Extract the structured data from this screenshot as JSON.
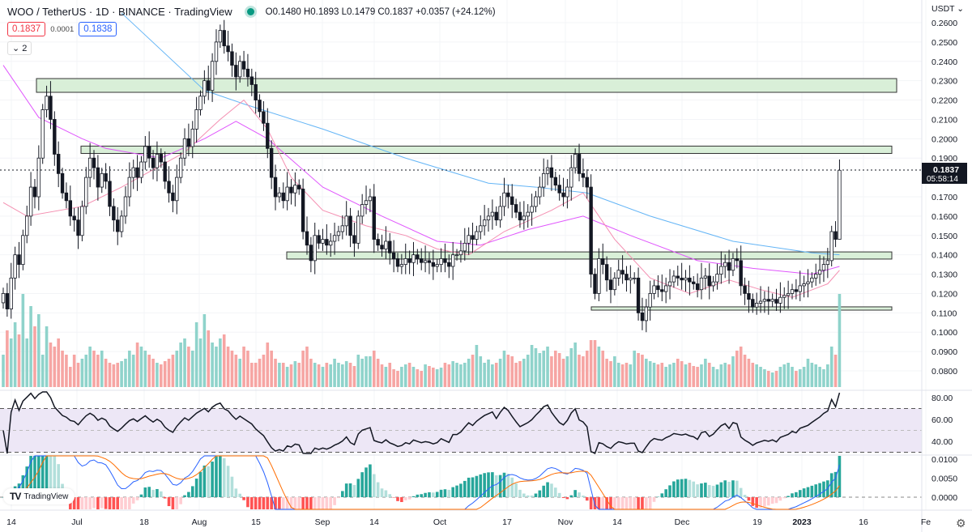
{
  "header": {
    "title": "WOO / TetherUS · 1D · BINANCE · TradingView",
    "ohlc": "O0.1480 H0.1893 L0.1479 C0.1837 +0.0357 (+24.12%)",
    "status_color": "#089981"
  },
  "trade": {
    "sell": "0.1837",
    "spread": "0.0001",
    "buy": "0.1838"
  },
  "collapse_label": "2",
  "currency_label": "USDT ⌄",
  "price_label": {
    "price": "0.1837",
    "countdown": "05:58:14"
  },
  "logo": "TradingView",
  "icons": {
    "settings": "gear-icon",
    "logo": "tradingview-logo-icon",
    "status": "market-open-dot-icon"
  },
  "colors": {
    "up_volume": "#8fd3cb",
    "down_volume": "#f6a5a3",
    "ma_long": "#64b5f6",
    "ma_mid": "#e056fd",
    "ma_short": "#f48fb1",
    "zone_fill": "#d9efd8",
    "rsi_band": "#ede7f6",
    "macd": "#2962ff",
    "signal": "#ff6d00"
  },
  "chart_data": [
    {
      "type": "candlestick",
      "price_axis": {
        "ticks": [
          "0.2600",
          "0.2500",
          "0.2400",
          "0.2300",
          "0.2200",
          "0.2100",
          "0.2000",
          "0.1900",
          "0.1700",
          "0.1600",
          "0.1500",
          "0.1400",
          "0.1300",
          "0.1200",
          "0.1100",
          "0.1000",
          "0.0900",
          "0.0800"
        ],
        "range": [
          0.075,
          0.262
        ]
      },
      "time_axis": {
        "ticks": [
          "14",
          "Jul",
          "18",
          "Aug",
          "15",
          "Sep",
          "14",
          "Oct",
          "17",
          "Nov",
          "14",
          "Dec",
          "19",
          "2023",
          "16",
          "Fe"
        ]
      },
      "closes": [
        0.12,
        0.112,
        0.128,
        0.14,
        0.135,
        0.15,
        0.16,
        0.175,
        0.17,
        0.19,
        0.215,
        0.222,
        0.21,
        0.192,
        0.182,
        0.172,
        0.168,
        0.16,
        0.158,
        0.15,
        0.165,
        0.18,
        0.19,
        0.185,
        0.175,
        0.182,
        0.178,
        0.165,
        0.158,
        0.152,
        0.16,
        0.17,
        0.18,
        0.185,
        0.18,
        0.188,
        0.196,
        0.19,
        0.185,
        0.192,
        0.188,
        0.178,
        0.172,
        0.168,
        0.18,
        0.19,
        0.2,
        0.196,
        0.205,
        0.215,
        0.222,
        0.23,
        0.225,
        0.24,
        0.25,
        0.256,
        0.248,
        0.245,
        0.238,
        0.232,
        0.24,
        0.236,
        0.232,
        0.228,
        0.22,
        0.214,
        0.208,
        0.195,
        0.18,
        0.17,
        0.172,
        0.168,
        0.175,
        0.172,
        0.176,
        0.174,
        0.152,
        0.145,
        0.137,
        0.15,
        0.146,
        0.148,
        0.145,
        0.147,
        0.15,
        0.152,
        0.155,
        0.16,
        0.15,
        0.146,
        0.16,
        0.166,
        0.168,
        0.17,
        0.148,
        0.145,
        0.143,
        0.147,
        0.141,
        0.138,
        0.134,
        0.135,
        0.138,
        0.136,
        0.14,
        0.138,
        0.136,
        0.137,
        0.136,
        0.134,
        0.135,
        0.138,
        0.136,
        0.134,
        0.14,
        0.14,
        0.142,
        0.146,
        0.15,
        0.148,
        0.152,
        0.155,
        0.158,
        0.16,
        0.162,
        0.158,
        0.165,
        0.172,
        0.17,
        0.166,
        0.162,
        0.158,
        0.16,
        0.162,
        0.165,
        0.17,
        0.175,
        0.182,
        0.185,
        0.18,
        0.176,
        0.172,
        0.17,
        0.175,
        0.185,
        0.192,
        0.182,
        0.18,
        0.175,
        0.13,
        0.12,
        0.138,
        0.135,
        0.127,
        0.122,
        0.128,
        0.132,
        0.13,
        0.127,
        0.128,
        0.128,
        0.11,
        0.106,
        0.113,
        0.12,
        0.124,
        0.122,
        0.121,
        0.124,
        0.126,
        0.129,
        0.128,
        0.127,
        0.128,
        0.126,
        0.125,
        0.122,
        0.128,
        0.129,
        0.124,
        0.126,
        0.13,
        0.134,
        0.136,
        0.132,
        0.138,
        0.137,
        0.124,
        0.12,
        0.117,
        0.113,
        0.115,
        0.116,
        0.117,
        0.116,
        0.117,
        0.115,
        0.118,
        0.119,
        0.12,
        0.122,
        0.121,
        0.124,
        0.125,
        0.126,
        0.128,
        0.13,
        0.132,
        0.135,
        0.137,
        0.152,
        0.148,
        0.1837
      ],
      "last_bar": {
        "open": 0.148,
        "high": 0.1893,
        "low": 0.1479,
        "close": 0.1837
      },
      "volumes": [
        40,
        70,
        60,
        80,
        65,
        115,
        60,
        100,
        75,
        90,
        40,
        75,
        55,
        50,
        60,
        45,
        40,
        25,
        40,
        30,
        35,
        40,
        50,
        45,
        40,
        45,
        35,
        30,
        28,
        30,
        32,
        35,
        45,
        40,
        55,
        50,
        45,
        40,
        35,
        30,
        28,
        32,
        35,
        40,
        45,
        55,
        60,
        50,
        45,
        80,
        60,
        90,
        70,
        55,
        50,
        60,
        65,
        50,
        45,
        40,
        35,
        50,
        45,
        30,
        30,
        35,
        40,
        55,
        45,
        35,
        30,
        30,
        25,
        28,
        32,
        30,
        45,
        50,
        35,
        30,
        28,
        25,
        30,
        28,
        35,
        30,
        28,
        32,
        30,
        26,
        40,
        35,
        38,
        38,
        45,
        35,
        28,
        25,
        30,
        22,
        20,
        25,
        28,
        30,
        25,
        22,
        20,
        28,
        26,
        24,
        22,
        24,
        30,
        28,
        32,
        30,
        28,
        30,
        35,
        40,
        52,
        38,
        30,
        34,
        28,
        30,
        35,
        45,
        40,
        38,
        30,
        32,
        35,
        40,
        52,
        48,
        42,
        45,
        50,
        38,
        45,
        42,
        35,
        38,
        48,
        55,
        40,
        38,
        45,
        58,
        58,
        50,
        45,
        35,
        32,
        38,
        30,
        28,
        30,
        28,
        45,
        42,
        40,
        35,
        32,
        30,
        28,
        30,
        25,
        28,
        30,
        35,
        32,
        28,
        30,
        26,
        25,
        28,
        35,
        30,
        25,
        22,
        28,
        30,
        28,
        38,
        45,
        50,
        40,
        35,
        30,
        28,
        25,
        22,
        20,
        18,
        20,
        25,
        28,
        30,
        25,
        20,
        22,
        25,
        35,
        30,
        28,
        25,
        22,
        28,
        50,
        40,
        115
      ],
      "zones": [
        {
          "top": 0.2311,
          "bottom": 0.224
        },
        {
          "top": 0.1962,
          "bottom": 0.1924
        },
        {
          "top": 0.1415,
          "bottom": 0.1378
        },
        {
          "top": 0.1131,
          "bottom": 0.1114
        }
      ],
      "moving_averages": [
        {
          "color": "#64b5f6",
          "points": [
            [
              30,
              0.265
            ],
            [
              51,
              0.225
            ],
            [
              61,
              0.218
            ],
            [
              81,
              0.205
            ],
            [
              102,
              0.19
            ],
            [
              123,
              0.177
            ],
            [
              135,
              0.175
            ],
            [
              148,
              0.172
            ],
            [
              164,
              0.16
            ],
            [
              185,
              0.147
            ],
            [
              205,
              0.141
            ],
            [
              212,
              0.14
            ]
          ]
        },
        {
          "color": "#e056fd",
          "points": [
            [
              0,
              0.238
            ],
            [
              9,
              0.211
            ],
            [
              20,
              0.2
            ],
            [
              26,
              0.195
            ],
            [
              40,
              0.19
            ],
            [
              51,
              0.2
            ],
            [
              59,
              0.209
            ],
            [
              67,
              0.2
            ],
            [
              81,
              0.175
            ],
            [
              96,
              0.16
            ],
            [
              110,
              0.147
            ],
            [
              121,
              0.145
            ],
            [
              133,
              0.153
            ],
            [
              147,
              0.16
            ],
            [
              159,
              0.15
            ],
            [
              176,
              0.137
            ],
            [
              190,
              0.133
            ],
            [
              205,
              0.13
            ],
            [
              212,
              0.134
            ]
          ]
        },
        {
          "color": "#f48fb1",
          "points": [
            [
              0,
              0.167
            ],
            [
              6,
              0.16
            ],
            [
              20,
              0.165
            ],
            [
              30,
              0.175
            ],
            [
              46,
              0.193
            ],
            [
              55,
              0.21
            ],
            [
              61,
              0.22
            ],
            [
              67,
              0.205
            ],
            [
              73,
              0.18
            ],
            [
              81,
              0.163
            ],
            [
              92,
              0.155
            ],
            [
              102,
              0.15
            ],
            [
              110,
              0.143
            ],
            [
              118,
              0.14
            ],
            [
              127,
              0.152
            ],
            [
              139,
              0.163
            ],
            [
              147,
              0.172
            ],
            [
              155,
              0.148
            ],
            [
              164,
              0.128
            ],
            [
              174,
              0.12
            ],
            [
              184,
              0.127
            ],
            [
              192,
              0.122
            ],
            [
              200,
              0.118
            ],
            [
              209,
              0.125
            ],
            [
              212,
              0.132
            ]
          ]
        }
      ]
    },
    {
      "type": "line",
      "indicator": "RSI",
      "axis_ticks": [
        "80.00",
        "60.00",
        "40.00"
      ],
      "bands": [
        30,
        70
      ]
    },
    {
      "type": "bar",
      "indicator": "MACD",
      "axis_ticks": [
        "0.0100",
        "0.0050",
        "0.0000"
      ]
    }
  ]
}
